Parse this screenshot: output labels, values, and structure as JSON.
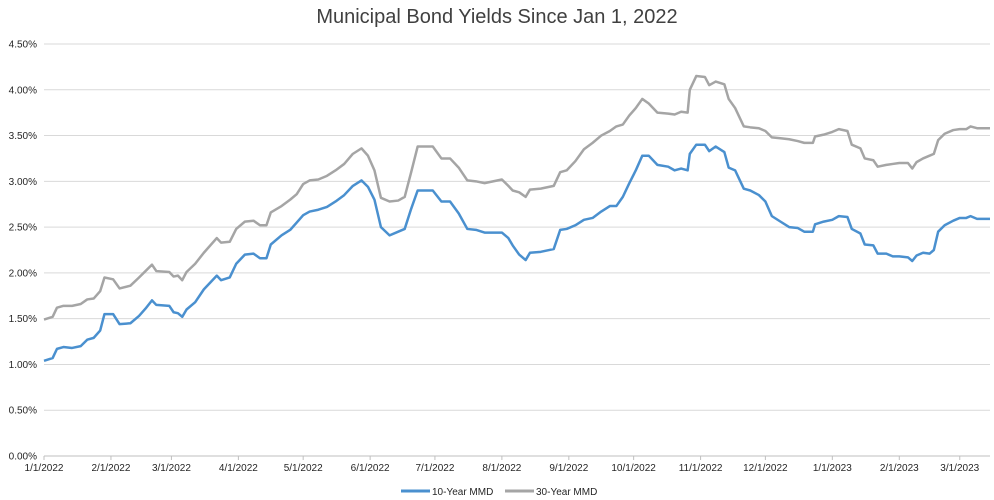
{
  "chart_data": {
    "type": "line",
    "title": "Municipal Bond Yields Since Jan 1, 2022",
    "xlabel": "",
    "ylabel": "",
    "ylim": [
      0,
      4.5
    ],
    "y_ticks": [
      "0.00%",
      "0.50%",
      "1.00%",
      "1.50%",
      "2.00%",
      "2.50%",
      "3.00%",
      "3.50%",
      "4.00%",
      "4.50%"
    ],
    "x_ticks": [
      "1/1/2022",
      "2/1/2022",
      "3/1/2022",
      "4/1/2022",
      "5/1/2022",
      "6/1/2022",
      "7/1/2022",
      "8/1/2022",
      "9/1/2022",
      "10/1/2022",
      "11/1/2022",
      "12/1/2022",
      "1/1/2023",
      "2/1/2023",
      "3/1/2023"
    ],
    "x_range": [
      "2022-01-01",
      "2023-03-15"
    ],
    "grid": "horizontal",
    "legend_position": "bottom",
    "series": [
      {
        "name": "10-Year MMD",
        "color": "#4a90cf",
        "points": [
          [
            "2022-01-01",
            1.04
          ],
          [
            "2022-01-05",
            1.07
          ],
          [
            "2022-01-07",
            1.17
          ],
          [
            "2022-01-10",
            1.19
          ],
          [
            "2022-01-14",
            1.18
          ],
          [
            "2022-01-18",
            1.2
          ],
          [
            "2022-01-21",
            1.27
          ],
          [
            "2022-01-24",
            1.29
          ],
          [
            "2022-01-27",
            1.37
          ],
          [
            "2022-01-29",
            1.55
          ],
          [
            "2022-02-02",
            1.55
          ],
          [
            "2022-02-05",
            1.44
          ],
          [
            "2022-02-10",
            1.45
          ],
          [
            "2022-02-14",
            1.53
          ],
          [
            "2022-02-17",
            1.61
          ],
          [
            "2022-02-20",
            1.7
          ],
          [
            "2022-02-22",
            1.65
          ],
          [
            "2022-02-28",
            1.64
          ],
          [
            "2022-03-02",
            1.57
          ],
          [
            "2022-03-04",
            1.56
          ],
          [
            "2022-03-06",
            1.52
          ],
          [
            "2022-03-08",
            1.6
          ],
          [
            "2022-03-12",
            1.68
          ],
          [
            "2022-03-16",
            1.82
          ],
          [
            "2022-03-22",
            1.97
          ],
          [
            "2022-03-24",
            1.92
          ],
          [
            "2022-03-28",
            1.95
          ],
          [
            "2022-03-31",
            2.1
          ],
          [
            "2022-04-04",
            2.2
          ],
          [
            "2022-04-08",
            2.21
          ],
          [
            "2022-04-11",
            2.16
          ],
          [
            "2022-04-14",
            2.16
          ],
          [
            "2022-04-16",
            2.31
          ],
          [
            "2022-04-21",
            2.41
          ],
          [
            "2022-04-25",
            2.47
          ],
          [
            "2022-04-28",
            2.55
          ],
          [
            "2022-05-01",
            2.63
          ],
          [
            "2022-05-04",
            2.67
          ],
          [
            "2022-05-08",
            2.69
          ],
          [
            "2022-05-12",
            2.72
          ],
          [
            "2022-05-16",
            2.78
          ],
          [
            "2022-05-20",
            2.85
          ],
          [
            "2022-05-24",
            2.95
          ],
          [
            "2022-05-28",
            3.01
          ],
          [
            "2022-05-31",
            2.94
          ],
          [
            "2022-06-03",
            2.8
          ],
          [
            "2022-06-06",
            2.5
          ],
          [
            "2022-06-10",
            2.41
          ],
          [
            "2022-06-14",
            2.45
          ],
          [
            "2022-06-17",
            2.48
          ],
          [
            "2022-06-20",
            2.7
          ],
          [
            "2022-06-23",
            2.9
          ],
          [
            "2022-06-30",
            2.9
          ],
          [
            "2022-07-04",
            2.78
          ],
          [
            "2022-07-08",
            2.78
          ],
          [
            "2022-07-12",
            2.65
          ],
          [
            "2022-07-16",
            2.48
          ],
          [
            "2022-07-20",
            2.47
          ],
          [
            "2022-07-24",
            2.44
          ],
          [
            "2022-08-01",
            2.44
          ],
          [
            "2022-08-04",
            2.38
          ],
          [
            "2022-08-06",
            2.3
          ],
          [
            "2022-08-09",
            2.2
          ],
          [
            "2022-08-12",
            2.14
          ],
          [
            "2022-08-14",
            2.22
          ],
          [
            "2022-08-19",
            2.23
          ],
          [
            "2022-08-25",
            2.26
          ],
          [
            "2022-08-28",
            2.47
          ],
          [
            "2022-08-31",
            2.48
          ],
          [
            "2022-09-04",
            2.52
          ],
          [
            "2022-09-08",
            2.58
          ],
          [
            "2022-09-12",
            2.6
          ],
          [
            "2022-09-16",
            2.67
          ],
          [
            "2022-09-20",
            2.73
          ],
          [
            "2022-09-23",
            2.73
          ],
          [
            "2022-09-26",
            2.83
          ],
          [
            "2022-09-29",
            2.98
          ],
          [
            "2022-10-02",
            3.12
          ],
          [
            "2022-10-05",
            3.28
          ],
          [
            "2022-10-08",
            3.28
          ],
          [
            "2022-10-12",
            3.18
          ],
          [
            "2022-10-17",
            3.16
          ],
          [
            "2022-10-20",
            3.12
          ],
          [
            "2022-10-23",
            3.14
          ],
          [
            "2022-10-26",
            3.12
          ],
          [
            "2022-10-27",
            3.3
          ],
          [
            "2022-10-30",
            3.4
          ],
          [
            "2022-11-03",
            3.4
          ],
          [
            "2022-11-05",
            3.33
          ],
          [
            "2022-11-08",
            3.38
          ],
          [
            "2022-11-12",
            3.32
          ],
          [
            "2022-11-14",
            3.15
          ],
          [
            "2022-11-17",
            3.12
          ],
          [
            "2022-11-21",
            2.92
          ],
          [
            "2022-11-24",
            2.9
          ],
          [
            "2022-11-28",
            2.85
          ],
          [
            "2022-12-01",
            2.78
          ],
          [
            "2022-12-04",
            2.62
          ],
          [
            "2022-12-08",
            2.56
          ],
          [
            "2022-12-12",
            2.5
          ],
          [
            "2022-12-16",
            2.49
          ],
          [
            "2022-12-19",
            2.45
          ],
          [
            "2022-12-23",
            2.45
          ],
          [
            "2022-12-24",
            2.53
          ],
          [
            "2022-12-28",
            2.56
          ],
          [
            "2023-01-01",
            2.58
          ],
          [
            "2023-01-04",
            2.62
          ],
          [
            "2023-01-08",
            2.61
          ],
          [
            "2023-01-10",
            2.48
          ],
          [
            "2023-01-14",
            2.43
          ],
          [
            "2023-01-16",
            2.31
          ],
          [
            "2023-01-20",
            2.3
          ],
          [
            "2023-01-22",
            2.21
          ],
          [
            "2023-01-26",
            2.21
          ],
          [
            "2023-01-29",
            2.18
          ],
          [
            "2023-02-01",
            2.18
          ],
          [
            "2023-02-05",
            2.17
          ],
          [
            "2023-02-07",
            2.13
          ],
          [
            "2023-02-09",
            2.19
          ],
          [
            "2023-02-12",
            2.22
          ],
          [
            "2023-02-15",
            2.21
          ],
          [
            "2023-02-17",
            2.25
          ],
          [
            "2023-02-19",
            2.45
          ],
          [
            "2023-02-22",
            2.52
          ],
          [
            "2023-02-26",
            2.57
          ],
          [
            "2023-03-01",
            2.6
          ],
          [
            "2023-03-04",
            2.6
          ],
          [
            "2023-03-06",
            2.62
          ],
          [
            "2023-03-09",
            2.59
          ],
          [
            "2023-03-15",
            2.59
          ]
        ]
      },
      {
        "name": "30-Year MMD",
        "color": "#a5a5a5",
        "points": [
          [
            "2022-01-01",
            1.49
          ],
          [
            "2022-01-05",
            1.52
          ],
          [
            "2022-01-07",
            1.62
          ],
          [
            "2022-01-10",
            1.64
          ],
          [
            "2022-01-14",
            1.64
          ],
          [
            "2022-01-18",
            1.66
          ],
          [
            "2022-01-21",
            1.71
          ],
          [
            "2022-01-24",
            1.72
          ],
          [
            "2022-01-27",
            1.8
          ],
          [
            "2022-01-29",
            1.95
          ],
          [
            "2022-02-02",
            1.93
          ],
          [
            "2022-02-05",
            1.83
          ],
          [
            "2022-02-10",
            1.86
          ],
          [
            "2022-02-14",
            1.95
          ],
          [
            "2022-02-17",
            2.02
          ],
          [
            "2022-02-20",
            2.09
          ],
          [
            "2022-02-22",
            2.02
          ],
          [
            "2022-02-28",
            2.01
          ],
          [
            "2022-03-02",
            1.96
          ],
          [
            "2022-03-04",
            1.97
          ],
          [
            "2022-03-06",
            1.92
          ],
          [
            "2022-03-08",
            2.01
          ],
          [
            "2022-03-12",
            2.1
          ],
          [
            "2022-03-16",
            2.22
          ],
          [
            "2022-03-22",
            2.38
          ],
          [
            "2022-03-24",
            2.33
          ],
          [
            "2022-03-28",
            2.34
          ],
          [
            "2022-03-31",
            2.48
          ],
          [
            "2022-04-04",
            2.56
          ],
          [
            "2022-04-08",
            2.57
          ],
          [
            "2022-04-11",
            2.52
          ],
          [
            "2022-04-14",
            2.52
          ],
          [
            "2022-04-16",
            2.66
          ],
          [
            "2022-04-21",
            2.73
          ],
          [
            "2022-04-25",
            2.8
          ],
          [
            "2022-04-28",
            2.86
          ],
          [
            "2022-05-01",
            2.97
          ],
          [
            "2022-05-04",
            3.01
          ],
          [
            "2022-05-08",
            3.02
          ],
          [
            "2022-05-12",
            3.06
          ],
          [
            "2022-05-16",
            3.12
          ],
          [
            "2022-05-20",
            3.19
          ],
          [
            "2022-05-24",
            3.3
          ],
          [
            "2022-05-28",
            3.36
          ],
          [
            "2022-05-31",
            3.28
          ],
          [
            "2022-06-03",
            3.12
          ],
          [
            "2022-06-06",
            2.82
          ],
          [
            "2022-06-10",
            2.78
          ],
          [
            "2022-06-14",
            2.79
          ],
          [
            "2022-06-17",
            2.83
          ],
          [
            "2022-06-20",
            3.1
          ],
          [
            "2022-06-23",
            3.38
          ],
          [
            "2022-06-30",
            3.38
          ],
          [
            "2022-07-04",
            3.25
          ],
          [
            "2022-07-08",
            3.25
          ],
          [
            "2022-07-12",
            3.15
          ],
          [
            "2022-07-16",
            3.01
          ],
          [
            "2022-07-20",
            3.0
          ],
          [
            "2022-07-24",
            2.98
          ],
          [
            "2022-08-01",
            3.02
          ],
          [
            "2022-08-04",
            2.95
          ],
          [
            "2022-08-06",
            2.9
          ],
          [
            "2022-08-09",
            2.88
          ],
          [
            "2022-08-12",
            2.83
          ],
          [
            "2022-08-14",
            2.91
          ],
          [
            "2022-08-19",
            2.92
          ],
          [
            "2022-08-25",
            2.95
          ],
          [
            "2022-08-28",
            3.1
          ],
          [
            "2022-08-31",
            3.12
          ],
          [
            "2022-09-04",
            3.22
          ],
          [
            "2022-09-08",
            3.35
          ],
          [
            "2022-09-12",
            3.42
          ],
          [
            "2022-09-16",
            3.5
          ],
          [
            "2022-09-20",
            3.55
          ],
          [
            "2022-09-23",
            3.6
          ],
          [
            "2022-09-26",
            3.62
          ],
          [
            "2022-09-29",
            3.72
          ],
          [
            "2022-10-02",
            3.8
          ],
          [
            "2022-10-05",
            3.9
          ],
          [
            "2022-10-08",
            3.85
          ],
          [
            "2022-10-12",
            3.75
          ],
          [
            "2022-10-17",
            3.74
          ],
          [
            "2022-10-20",
            3.73
          ],
          [
            "2022-10-23",
            3.76
          ],
          [
            "2022-10-26",
            3.75
          ],
          [
            "2022-10-27",
            4.0
          ],
          [
            "2022-10-30",
            4.15
          ],
          [
            "2022-11-03",
            4.14
          ],
          [
            "2022-11-05",
            4.05
          ],
          [
            "2022-11-08",
            4.09
          ],
          [
            "2022-11-12",
            4.06
          ],
          [
            "2022-11-14",
            3.9
          ],
          [
            "2022-11-17",
            3.8
          ],
          [
            "2022-11-21",
            3.6
          ],
          [
            "2022-11-24",
            3.59
          ],
          [
            "2022-11-28",
            3.58
          ],
          [
            "2022-12-01",
            3.55
          ],
          [
            "2022-12-04",
            3.48
          ],
          [
            "2022-12-08",
            3.47
          ],
          [
            "2022-12-12",
            3.46
          ],
          [
            "2022-12-16",
            3.44
          ],
          [
            "2022-12-19",
            3.42
          ],
          [
            "2022-12-23",
            3.42
          ],
          [
            "2022-12-24",
            3.49
          ],
          [
            "2022-12-28",
            3.51
          ],
          [
            "2023-01-01",
            3.54
          ],
          [
            "2023-01-04",
            3.57
          ],
          [
            "2023-01-08",
            3.55
          ],
          [
            "2023-01-10",
            3.4
          ],
          [
            "2023-01-14",
            3.36
          ],
          [
            "2023-01-16",
            3.25
          ],
          [
            "2023-01-20",
            3.23
          ],
          [
            "2023-01-22",
            3.16
          ],
          [
            "2023-01-26",
            3.18
          ],
          [
            "2023-01-29",
            3.19
          ],
          [
            "2023-02-01",
            3.2
          ],
          [
            "2023-02-05",
            3.2
          ],
          [
            "2023-02-07",
            3.14
          ],
          [
            "2023-02-09",
            3.21
          ],
          [
            "2023-02-12",
            3.25
          ],
          [
            "2023-02-15",
            3.28
          ],
          [
            "2023-02-17",
            3.3
          ],
          [
            "2023-02-19",
            3.45
          ],
          [
            "2023-02-22",
            3.52
          ],
          [
            "2023-02-26",
            3.56
          ],
          [
            "2023-03-01",
            3.57
          ],
          [
            "2023-03-04",
            3.57
          ],
          [
            "2023-03-06",
            3.6
          ],
          [
            "2023-03-09",
            3.58
          ],
          [
            "2023-03-15",
            3.58
          ]
        ]
      }
    ]
  }
}
